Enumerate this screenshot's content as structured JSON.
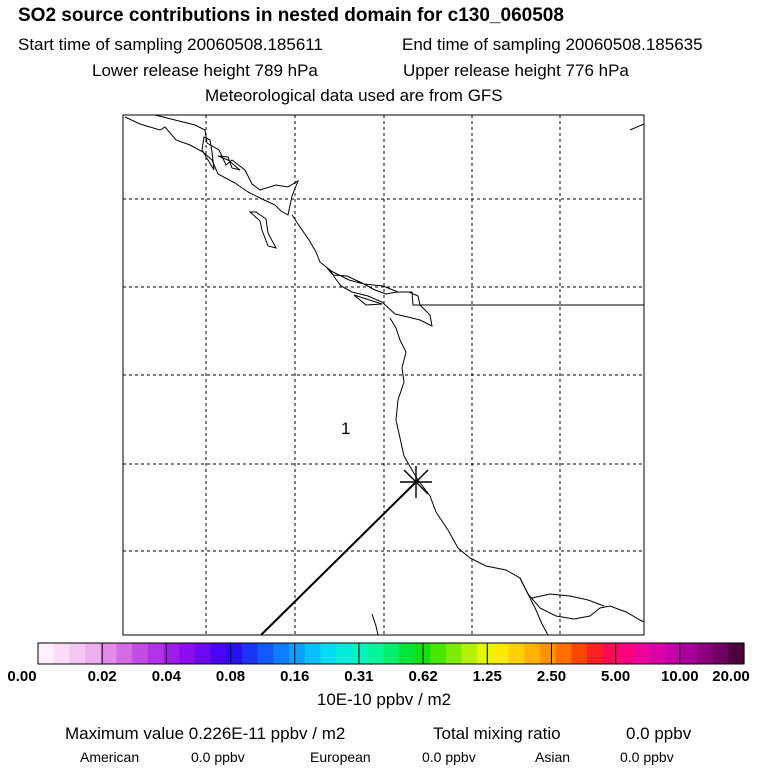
{
  "header": {
    "title": "SO2 source contributions in nested domain for c130_060508",
    "start_time": "Start time of sampling 20060508.185611",
    "end_time": "End time of sampling 20060508.185635",
    "lower_height": "Lower release height  789 hPa",
    "upper_height": "Upper release height  776 hPa",
    "met_data": "Meteorological data used are from GFS"
  },
  "map": {
    "contour_label": "1",
    "marker": "source-cross"
  },
  "colorbar": {
    "tick_labels": [
      "0.00",
      "0.02",
      "0.04",
      "0.08",
      "0.16",
      "0.31",
      "0.62",
      "1.25",
      "2.50",
      "5.00",
      "10.00",
      "20.00"
    ],
    "units": "10E-10 ppbv / m2",
    "colors": [
      "#fff0fb",
      "#fadcf6",
      "#f4c6f1",
      "#eeaeef",
      "#e28be8",
      "#d36be4",
      "#c24de2",
      "#b232e5",
      "#9f1ce8",
      "#8a0ef0",
      "#6d08f4",
      "#4a05f8",
      "#2a0ef8",
      "#1a34fb",
      "#1558fc",
      "#0f7dfc",
      "#0aa0fb",
      "#05c0f9",
      "#00dcf2",
      "#00ecdc",
      "#00f4bf",
      "#00f69a",
      "#00ef6d",
      "#00e43c",
      "#14e10c",
      "#48e600",
      "#7ded00",
      "#b2f200",
      "#e4f600",
      "#fbe900",
      "#ffd000",
      "#ffb200",
      "#ff9200",
      "#ff6f00",
      "#ff4500",
      "#ff1e22",
      "#ff0a55",
      "#ff0080",
      "#f0009c",
      "#dc00a8",
      "#c600aa",
      "#a80098",
      "#8a007c",
      "#6d0060",
      "#50003f"
    ]
  },
  "summary": {
    "max_value": "Maximum value  0.226E-11 ppbv / m2",
    "total_label": "Total mixing ratio",
    "total_value": "0.0 ppbv",
    "american_label": "American",
    "american_value": "0.0 ppbv",
    "european_label": "European",
    "european_value": "0.0 ppbv",
    "asian_label": "Asian",
    "asian_value": "0.0 ppbv"
  }
}
